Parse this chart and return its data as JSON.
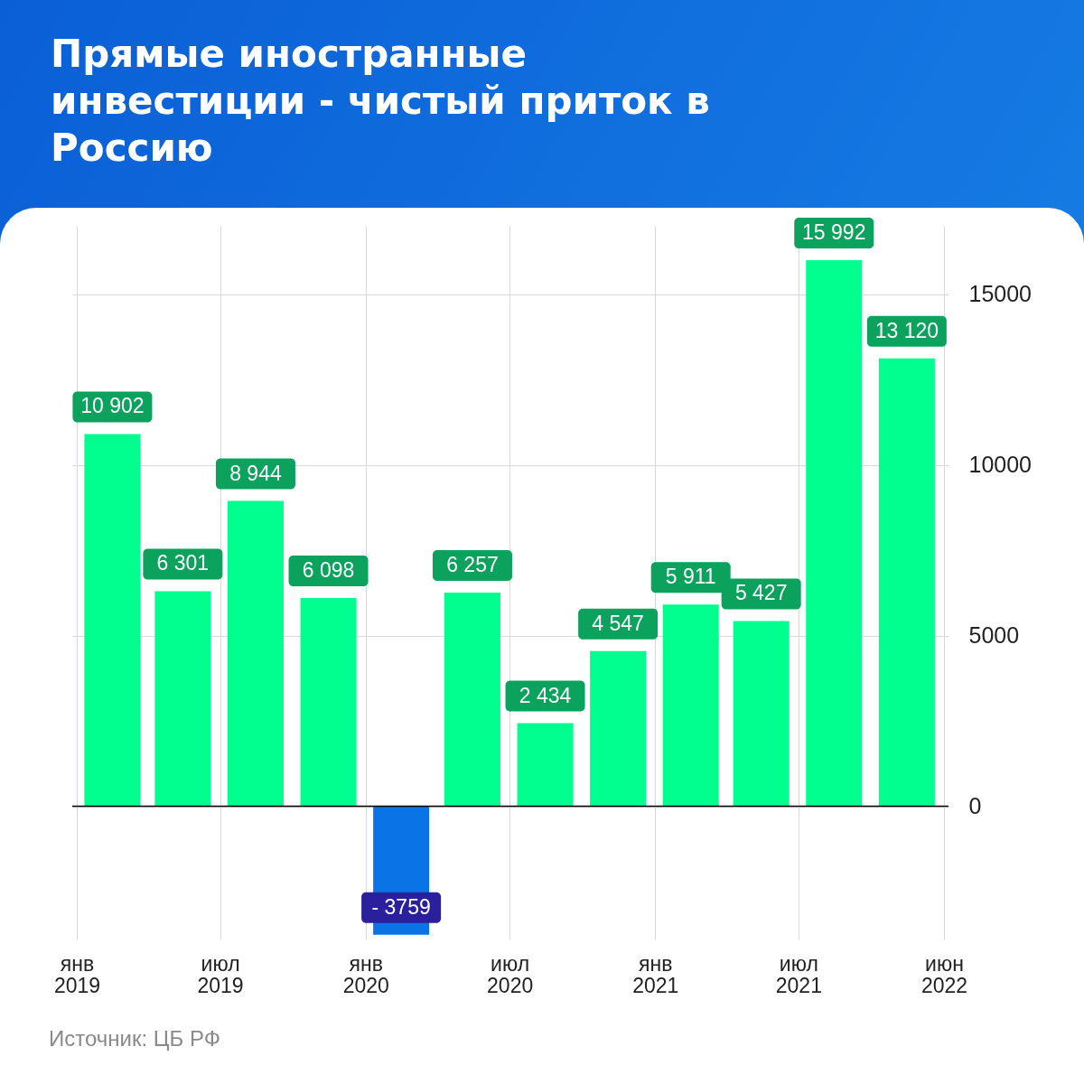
{
  "chart_data": {
    "type": "bar",
    "title": "Прямые иностранные инвестиции - чистый приток в Россию",
    "x": [
      "2019-02-15",
      "2019-05-15",
      "2019-08-15",
      "2019-11-15",
      "2020-02-15",
      "2020-05-15",
      "2020-08-15",
      "2020-11-15",
      "2021-02-15",
      "2021-05-15",
      "2021-08-15",
      "2021-11-15"
    ],
    "values": [
      10902,
      6301,
      8944,
      6098,
      -3759,
      6257,
      2434,
      4547,
      5911,
      5427,
      15992,
      13120
    ],
    "colors": [
      "#00ff8f",
      "#00ff8f",
      "#00ff8f",
      "#00ff8f",
      "#0a74e6",
      "#00ff8f",
      "#00ff8f",
      "#00ff8f",
      "#00ff8f",
      "#00ff8f",
      "#00ff8f",
      "#00ff8f"
    ],
    "value_labels": [
      "10 902",
      "6 301",
      "8 944",
      "6 098",
      "- 3759",
      "6 257",
      "2 434",
      "4 547",
      "5 911",
      "5 427",
      "15 992",
      "13 120"
    ],
    "xlim": [
      "2019-01-01",
      "2022-01-01"
    ],
    "xticks": [
      {
        "value": "2019-01-01",
        "label": "янв 2019"
      },
      {
        "value": "2019-07-01",
        "label": "июл 2019"
      },
      {
        "value": "2020-01-01",
        "label": "янв 2020"
      },
      {
        "value": "2020-07-01",
        "label": "июл 2020"
      },
      {
        "value": "2021-01-01",
        "label": "янв 2021"
      },
      {
        "value": "2021-07-01",
        "label": "июл 2021"
      },
      {
        "value": "2022-01-01",
        "label": "июн 2022"
      }
    ],
    "ylim": [
      -3900,
      17000
    ],
    "yticks": [
      0,
      5000,
      10000,
      15000
    ],
    "grid": true,
    "ref_lines": [
      {
        "axis": "y",
        "value": 0,
        "color": "#000000"
      }
    ],
    "annotations": [
      "Источник: ЦБ РФ"
    ]
  }
}
